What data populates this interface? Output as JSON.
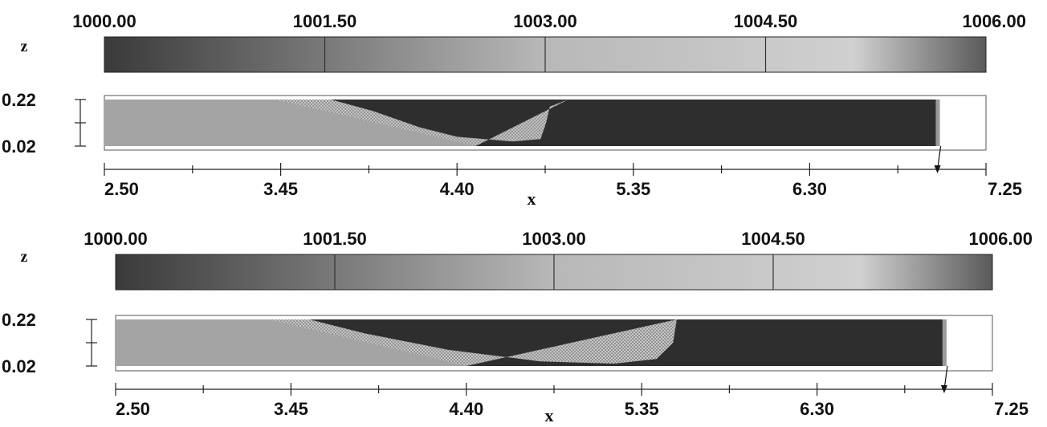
{
  "chart_data": [
    {
      "type": "heatmap",
      "colorbar": {
        "ticks": [
          "1000.00",
          "1001.50",
          "1003.00",
          "1004.50",
          "1006.00"
        ],
        "range": [
          1000.0,
          1006.0
        ]
      },
      "ylabel": "z",
      "xlabel": "x",
      "y_ticks": [
        "0.22",
        "0.02"
      ],
      "yrange": [
        0.02,
        0.22
      ],
      "x_ticks": [
        "2.50",
        "3.45",
        "4.40",
        "5.35",
        "6.30",
        "7.25"
      ],
      "xrange": [
        2.5,
        7.25
      ],
      "interface": [
        [
          2.5,
          0.22
        ],
        [
          3.42,
          0.22
        ],
        [
          4.5,
          0.02
        ]
      ],
      "front": [
        [
          3.72,
          0.22
        ],
        [
          3.95,
          0.17
        ],
        [
          4.2,
          0.1
        ],
        [
          4.4,
          0.06
        ],
        [
          4.7,
          0.04
        ],
        [
          4.85,
          0.05
        ],
        [
          4.88,
          0.12
        ],
        [
          4.9,
          0.19
        ],
        [
          5.0,
          0.22
        ]
      ],
      "dense_end_x": 6.98
    },
    {
      "type": "heatmap",
      "colorbar": {
        "ticks": [
          "1000.00",
          "1001.50",
          "1003.00",
          "1004.50",
          "1006.00"
        ],
        "range": [
          1000.0,
          1006.0
        ]
      },
      "ylabel": "z",
      "xlabel": "x",
      "y_ticks": [
        "0.22",
        "0.02"
      ],
      "yrange": [
        0.02,
        0.22
      ],
      "x_ticks": [
        "2.50",
        "3.45",
        "4.40",
        "5.35",
        "6.30",
        "7.25"
      ],
      "xrange": [
        2.5,
        7.25
      ],
      "interface": [
        [
          2.5,
          0.22
        ],
        [
          3.33,
          0.22
        ],
        [
          4.4,
          0.02
        ]
      ],
      "front": [
        [
          3.55,
          0.22
        ],
        [
          3.85,
          0.16
        ],
        [
          4.3,
          0.09
        ],
        [
          4.8,
          0.04
        ],
        [
          5.2,
          0.03
        ],
        [
          5.43,
          0.05
        ],
        [
          5.52,
          0.12
        ],
        [
          5.54,
          0.22
        ]
      ],
      "dense_end_x": 6.98
    }
  ]
}
